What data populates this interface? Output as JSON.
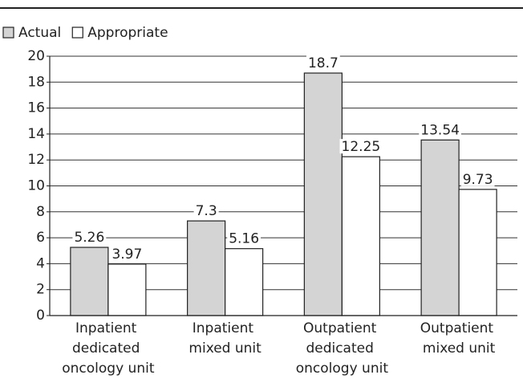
{
  "chart_data": {
    "type": "bar",
    "categories": [
      "Inpatient dedicated oncology unit",
      "Inpatient mixed unit",
      "Outpatient dedicated oncology unit",
      "Outpatient mixed unit"
    ],
    "series": [
      {
        "name": "Actual",
        "color": "#d4d4d4",
        "values": [
          5.26,
          7.3,
          18.7,
          13.54
        ]
      },
      {
        "name": "Appropriate",
        "color": "#ffffff",
        "values": [
          3.97,
          5.16,
          12.25,
          9.73
        ]
      }
    ],
    "ylim": [
      0,
      20
    ],
    "yticks": [
      0,
      2,
      4,
      6,
      8,
      10,
      12,
      14,
      16,
      18,
      20
    ],
    "grid": true,
    "legend": "top-left"
  }
}
